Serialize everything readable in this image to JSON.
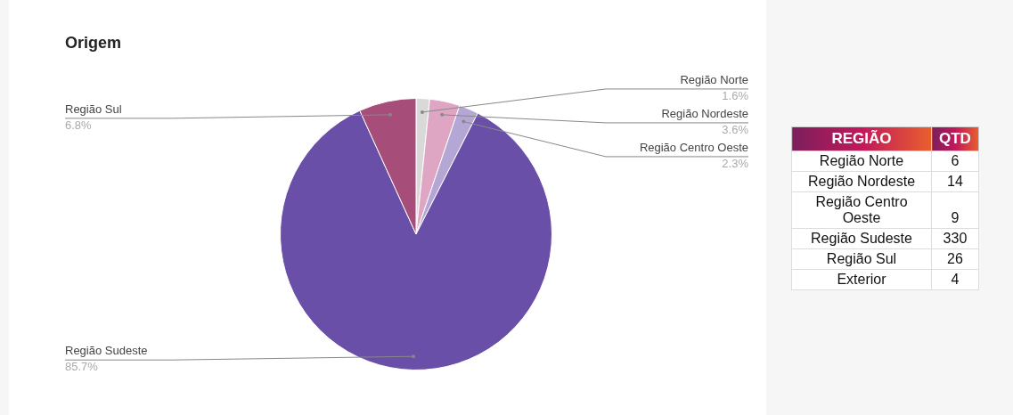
{
  "chart_data": [
    {
      "type": "pie",
      "title": "Origem",
      "categories": [
        "Região Norte",
        "Região Nordeste",
        "Região Centro Oeste",
        "Região Sudeste",
        "Região Sul"
      ],
      "values": [
        1.6,
        3.6,
        2.3,
        85.7,
        6.8
      ],
      "value_labels": [
        "1.6%",
        "3.6%",
        "2.3%",
        "85.7%",
        "6.8%"
      ],
      "colors": [
        "#d9d9d9",
        "#dfa6c4",
        "#b4a7d6",
        "#6a4fa8",
        "#a64d79"
      ],
      "legend": false
    },
    {
      "type": "other",
      "xlabel": "REGIÃO",
      "ylabel": "QTD",
      "categories": [
        "Região Norte",
        "Região Nordeste",
        "Região Centro Oeste",
        "Região Sudeste",
        "Região Sul",
        "Exterior"
      ],
      "values": [
        6,
        14,
        9,
        330,
        26,
        4
      ],
      "data_labels": true
    }
  ]
}
